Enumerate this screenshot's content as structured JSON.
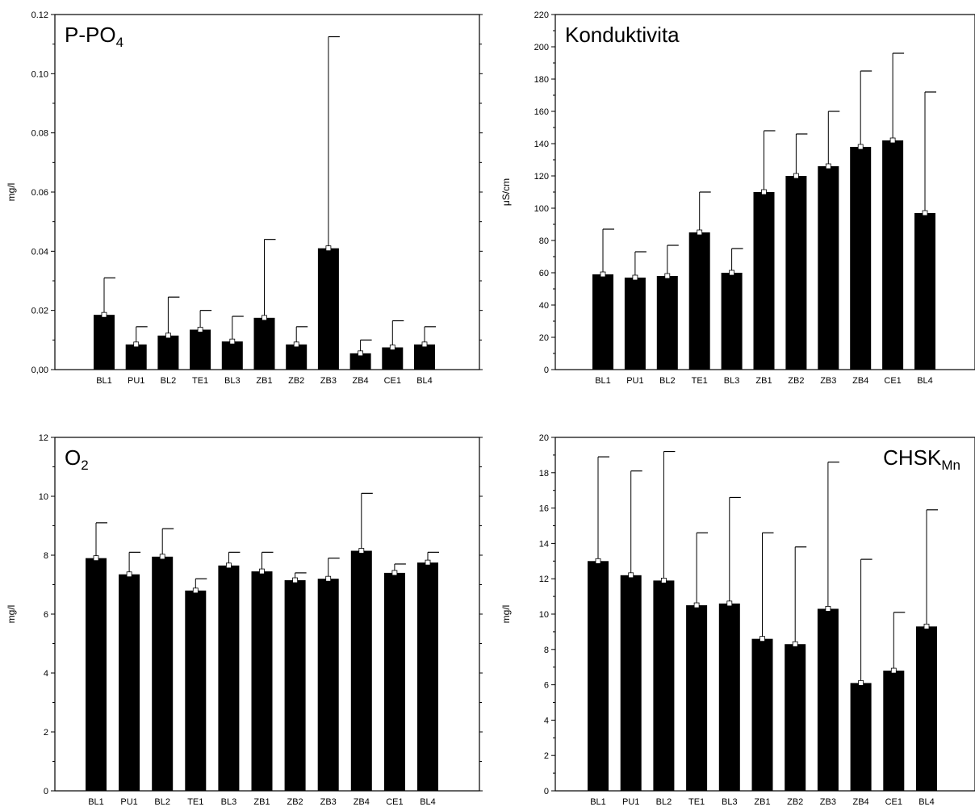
{
  "chart_data": [
    {
      "type": "bar",
      "title": "P-PO",
      "title_subscript": "4",
      "ylabel": "mg/l",
      "ylim": [
        0,
        0.12
      ],
      "yticks": [
        0,
        0.02,
        0.04,
        0.06,
        0.08,
        0.1,
        0.12
      ],
      "ytick_labels": [
        "0,00",
        "0.02",
        "0.04",
        "0.06",
        "0.08",
        "0.10",
        "0.12"
      ],
      "categories": [
        "BL1",
        "PU1",
        "BL2",
        "TE1",
        "BL3",
        "ZB1",
        "ZB2",
        "ZB3",
        "ZB4",
        "CE1",
        "BL4"
      ],
      "values": [
        0.0185,
        0.0085,
        0.0115,
        0.0135,
        0.0095,
        0.0175,
        0.0085,
        0.041,
        0.0055,
        0.0075,
        0.0085
      ],
      "error_upper": [
        0.031,
        0.0145,
        0.0245,
        0.02,
        0.018,
        0.044,
        0.0145,
        0.1125,
        0.01,
        0.0165,
        0.0145
      ],
      "title_position": "top-left",
      "grid": false,
      "bar_color": "#000000"
    },
    {
      "type": "bar",
      "title": "Konduktivita",
      "title_subscript": "",
      "ylabel": "μS/cm",
      "ylim": [
        0,
        220
      ],
      "yticks": [
        0,
        20,
        40,
        60,
        80,
        100,
        120,
        140,
        160,
        180,
        200,
        220
      ],
      "ytick_labels": [
        "0",
        "20",
        "40",
        "60",
        "80",
        "100",
        "120",
        "140",
        "160",
        "180",
        "200",
        "220"
      ],
      "categories": [
        "BL1",
        "PU1",
        "BL2",
        "TE1",
        "BL3",
        "ZB1",
        "ZB2",
        "ZB3",
        "ZB4",
        "CE1",
        "BL4"
      ],
      "values": [
        59,
        57,
        58,
        85,
        60,
        110,
        120,
        126,
        138,
        142,
        97
      ],
      "error_upper": [
        87,
        73,
        77,
        110,
        75,
        148,
        146,
        160,
        185,
        196,
        172
      ],
      "title_position": "top-left",
      "grid": false,
      "bar_color": "#000000"
    },
    {
      "type": "bar",
      "title": "O",
      "title_subscript": "2",
      "ylabel": "mg/l",
      "ylim": [
        0,
        12
      ],
      "yticks": [
        0,
        2,
        4,
        6,
        8,
        10,
        12
      ],
      "ytick_labels": [
        "0",
        "2",
        "4",
        "6",
        "8",
        "10",
        "12"
      ],
      "categories": [
        "BL1",
        "PU1",
        "BL2",
        "TE1",
        "BL3",
        "ZB1",
        "ZB2",
        "ZB3",
        "ZB4",
        "CE1",
        "BL4"
      ],
      "values": [
        7.9,
        7.35,
        7.95,
        6.8,
        7.65,
        7.45,
        7.15,
        7.2,
        8.15,
        7.4,
        7.75
      ],
      "error_upper": [
        9.1,
        8.1,
        8.9,
        7.2,
        8.1,
        8.1,
        7.4,
        7.9,
        10.1,
        7.7,
        8.1
      ],
      "title_position": "top-left",
      "grid": false,
      "bar_color": "#000000"
    },
    {
      "type": "bar",
      "title": "CHSK",
      "title_subscript": "Mn",
      "ylabel": "mg/l",
      "ylim": [
        0,
        20
      ],
      "yticks": [
        0,
        2,
        4,
        6,
        8,
        10,
        12,
        14,
        16,
        18,
        20
      ],
      "ytick_labels": [
        "0",
        "2",
        "4",
        "6",
        "8",
        "10",
        "12",
        "14",
        "16",
        "18",
        "20"
      ],
      "categories": [
        "BL1",
        "PU1",
        "BL2",
        "TE1",
        "BL3",
        "ZB1",
        "ZB2",
        "ZB3",
        "ZB4",
        "CE1",
        "BL4"
      ],
      "values": [
        13.0,
        12.2,
        11.9,
        10.5,
        10.6,
        8.6,
        8.3,
        10.3,
        6.1,
        6.8,
        9.3
      ],
      "error_upper": [
        18.9,
        18.1,
        19.2,
        14.6,
        16.6,
        14.6,
        13.8,
        18.6,
        13.1,
        10.1,
        15.9
      ],
      "title_position": "top-right",
      "grid": false,
      "bar_color": "#000000"
    }
  ]
}
